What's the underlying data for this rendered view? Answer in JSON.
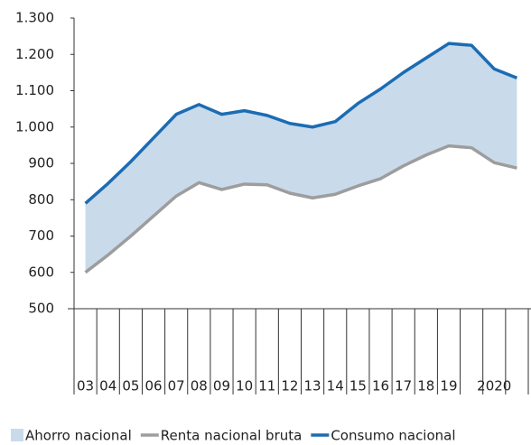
{
  "chart_data": {
    "type": "line",
    "categories": [
      "03",
      "04",
      "05",
      "06",
      "07",
      "08",
      "09",
      "10",
      "11",
      "12",
      "13",
      "14",
      "15",
      "16",
      "17",
      "18",
      "19",
      null,
      "2020",
      null
    ],
    "series": [
      {
        "name": "Ahorro nacional",
        "color": "#c9daeb",
        "kind": "area",
        "stack_on": 1,
        "values": [
          190,
          197,
          205,
          215,
          225,
          215,
          207,
          202,
          191,
          192,
          195,
          200,
          227,
          247,
          257,
          267,
          282,
          282,
          258,
          248
        ]
      },
      {
        "name": "Renta nacional bruta",
        "color": "#9d9d9d",
        "values": [
          600,
          648,
          700,
          755,
          810,
          847,
          828,
          843,
          841,
          818,
          805,
          815,
          838,
          858,
          893,
          923,
          948,
          943,
          902,
          887
        ]
      },
      {
        "name": "Consumo nacional",
        "color": "#1b6cb3",
        "values": [
          790,
          845,
          905,
          970,
          1035,
          1062,
          1035,
          1045,
          1032,
          1010,
          1000,
          1015,
          1065,
          1105,
          1150,
          1190,
          1230,
          1225,
          1160,
          1135
        ]
      }
    ],
    "ylim": [
      500,
      1300
    ],
    "yticks": [
      500,
      600,
      700,
      800,
      900,
      {
        "value": 1000,
        "label": "1.000"
      },
      {
        "value": 1100,
        "label": "1.100"
      },
      {
        "value": 1200,
        "label": "1.200"
      },
      {
        "value": 1300,
        "label": "1.300"
      }
    ],
    "legend": "bottom"
  }
}
